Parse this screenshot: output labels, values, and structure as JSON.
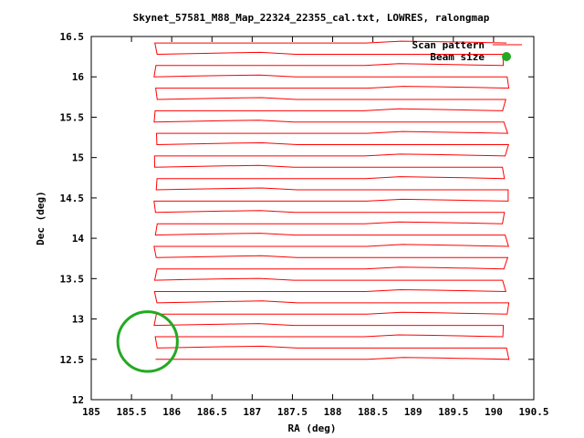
{
  "chart_data": {
    "type": "line",
    "title": "Skynet_57581_M88_Map_22324_22355_cal.txt, LOWRES, ralongmap",
    "xlabel": "RA (deg)",
    "ylabel": "Dec (deg)",
    "xlim": [
      185,
      190.5
    ],
    "ylim": [
      12,
      16.5
    ],
    "xticks": [
      "185",
      "185.5",
      "186",
      "186.5",
      "187",
      "187.5",
      "188",
      "188.5",
      "189",
      "189.5",
      "190",
      "190.5"
    ],
    "yticks": [
      "12",
      "12.5",
      "13",
      "13.5",
      "14",
      "14.5",
      "15",
      "15.5",
      "16",
      "16.5"
    ],
    "grid": false,
    "legend_position": "top-right",
    "series": [
      {
        "name": "Scan pattern",
        "color": "#ff0000",
        "style": "raster",
        "ra_range": [
          185.8,
          190.2
        ],
        "dec_rows": [
          12.5,
          12.64,
          12.78,
          12.92,
          13.06,
          13.2,
          13.34,
          13.48,
          13.62,
          13.76,
          13.9,
          14.04,
          14.18,
          14.32,
          14.46,
          14.6,
          14.74,
          14.88,
          15.02,
          15.16,
          15.3,
          15.44,
          15.58,
          15.72,
          15.86,
          16.0,
          16.14,
          16.28,
          16.42
        ]
      },
      {
        "name": "Beam size",
        "color": "#22aa22",
        "style": "circle",
        "center": [
          185.7,
          12.72
        ],
        "radius_deg": 0.37
      }
    ]
  }
}
